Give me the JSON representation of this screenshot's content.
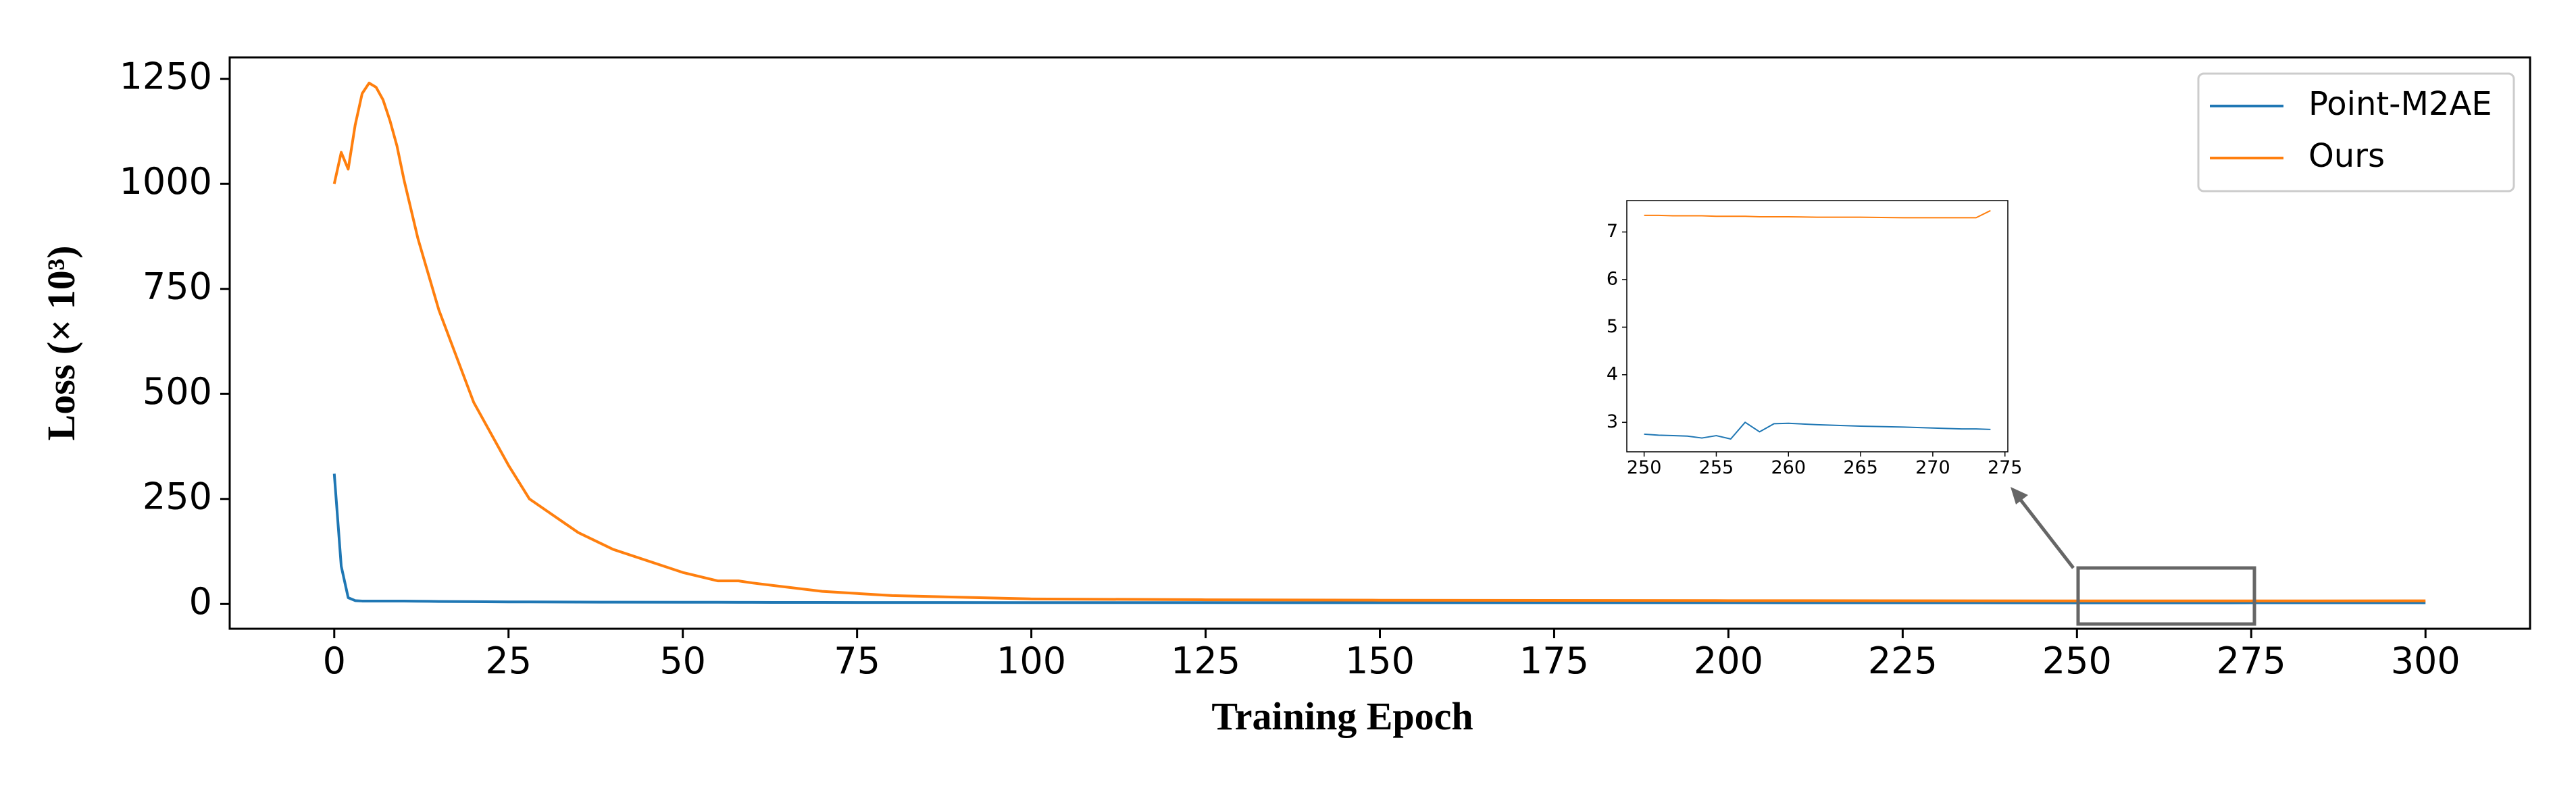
{
  "chart_data": [
    {
      "type": "line",
      "xlabel": "Training Epoch",
      "ylabel": "Loss (× 10³)",
      "x": [
        0,
        1,
        2,
        3,
        4,
        5,
        6,
        7,
        8,
        9,
        10,
        12,
        15,
        20,
        25,
        28,
        35,
        40,
        50,
        55,
        58,
        60,
        70,
        80,
        100,
        125,
        150,
        200,
        250,
        275,
        300
      ],
      "series": [
        {
          "name": "Point-M2AE",
          "color": "#1f77b4",
          "values": [
            310,
            90,
            15,
            8,
            7,
            7,
            7,
            7,
            7,
            7,
            7,
            6.5,
            6,
            5.5,
            5,
            4.8,
            4.5,
            4.3,
            4,
            4,
            3.9,
            3.8,
            3.6,
            3.5,
            3.3,
            3.2,
            3.1,
            3.0,
            2.75,
            2.8,
            2.8
          ]
        },
        {
          "name": "Ours",
          "color": "#ff7f0e",
          "values": [
            1000,
            1075,
            1035,
            1140,
            1215,
            1240,
            1230,
            1200,
            1150,
            1090,
            1010,
            870,
            700,
            480,
            330,
            250,
            170,
            130,
            75,
            55,
            55,
            50,
            30,
            20,
            12,
            10,
            9,
            8,
            7.3,
            7.3,
            7.5
          ]
        }
      ],
      "xlim": [
        -15,
        315
      ],
      "xticks": [
        0,
        25,
        50,
        75,
        100,
        125,
        150,
        175,
        200,
        225,
        250,
        275,
        300
      ],
      "ylim": [
        -59,
        1301
      ],
      "yticks": [
        0,
        250,
        500,
        750,
        1000,
        1250
      ],
      "legend": "upper right"
    },
    {
      "type": "line",
      "x": [
        250,
        251,
        252,
        253,
        254,
        255,
        256,
        257,
        258,
        259,
        260,
        262,
        265,
        268,
        270,
        272,
        273,
        274
      ],
      "series": [
        {
          "color": "#1f77b4",
          "values": [
            2.75,
            2.73,
            2.72,
            2.71,
            2.67,
            2.72,
            2.65,
            3.0,
            2.8,
            2.97,
            2.98,
            2.95,
            2.92,
            2.9,
            2.88,
            2.86,
            2.86,
            2.85
          ]
        },
        {
          "color": "#ff7f0e",
          "values": [
            7.35,
            7.35,
            7.34,
            7.34,
            7.34,
            7.33,
            7.33,
            7.33,
            7.32,
            7.32,
            7.32,
            7.31,
            7.31,
            7.3,
            7.3,
            7.3,
            7.3,
            7.45
          ]
        }
      ],
      "xlim": [
        248.8,
        275.2
      ],
      "xticks": [
        250,
        255,
        260,
        265,
        270,
        275
      ],
      "ylim": [
        2.38,
        7.66
      ],
      "yticks": [
        3,
        4,
        5,
        6,
        7
      ]
    }
  ]
}
